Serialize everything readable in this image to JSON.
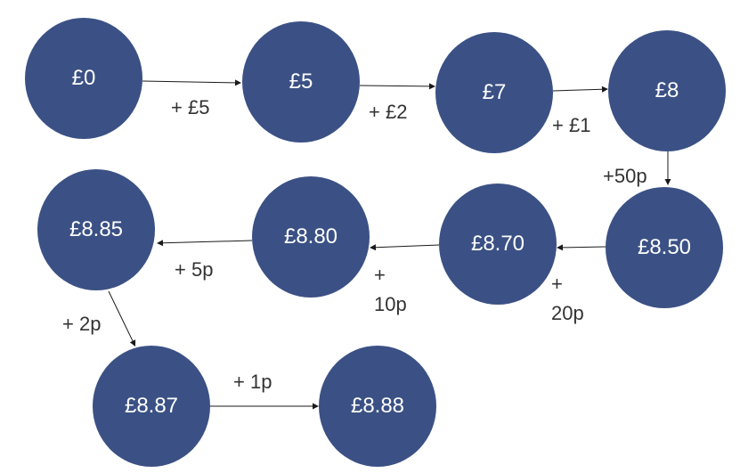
{
  "colors": {
    "node_fill": "#3b5185",
    "node_text": "#ffffff",
    "edge": "#1a1a1a",
    "label_text": "#333333"
  },
  "nodes": [
    {
      "id": "n0",
      "label": "£0"
    },
    {
      "id": "n1",
      "label": "£5"
    },
    {
      "id": "n2",
      "label": "£7"
    },
    {
      "id": "n3",
      "label": "£8"
    },
    {
      "id": "n4",
      "label": "£8.50"
    },
    {
      "id": "n5",
      "label": "£8.70"
    },
    {
      "id": "n6",
      "label": "£8.80"
    },
    {
      "id": "n7",
      "label": "£8.85"
    },
    {
      "id": "n8",
      "label": "£8.87"
    },
    {
      "id": "n9",
      "label": "£8.88"
    }
  ],
  "edges": [
    {
      "from": "n0",
      "to": "n1",
      "label": "+ £5"
    },
    {
      "from": "n1",
      "to": "n2",
      "label": "+ £2"
    },
    {
      "from": "n2",
      "to": "n3",
      "label": "+ £1"
    },
    {
      "from": "n3",
      "to": "n4",
      "label": "+50p"
    },
    {
      "from": "n4",
      "to": "n5",
      "label": "+\n20p"
    },
    {
      "from": "n5",
      "to": "n6",
      "label": "+\n10p"
    },
    {
      "from": "n6",
      "to": "n7",
      "label": "+ 5p"
    },
    {
      "from": "n7",
      "to": "n8",
      "label": "+ 2p"
    },
    {
      "from": "n8",
      "to": "n9",
      "label": "+ 1p"
    }
  ]
}
